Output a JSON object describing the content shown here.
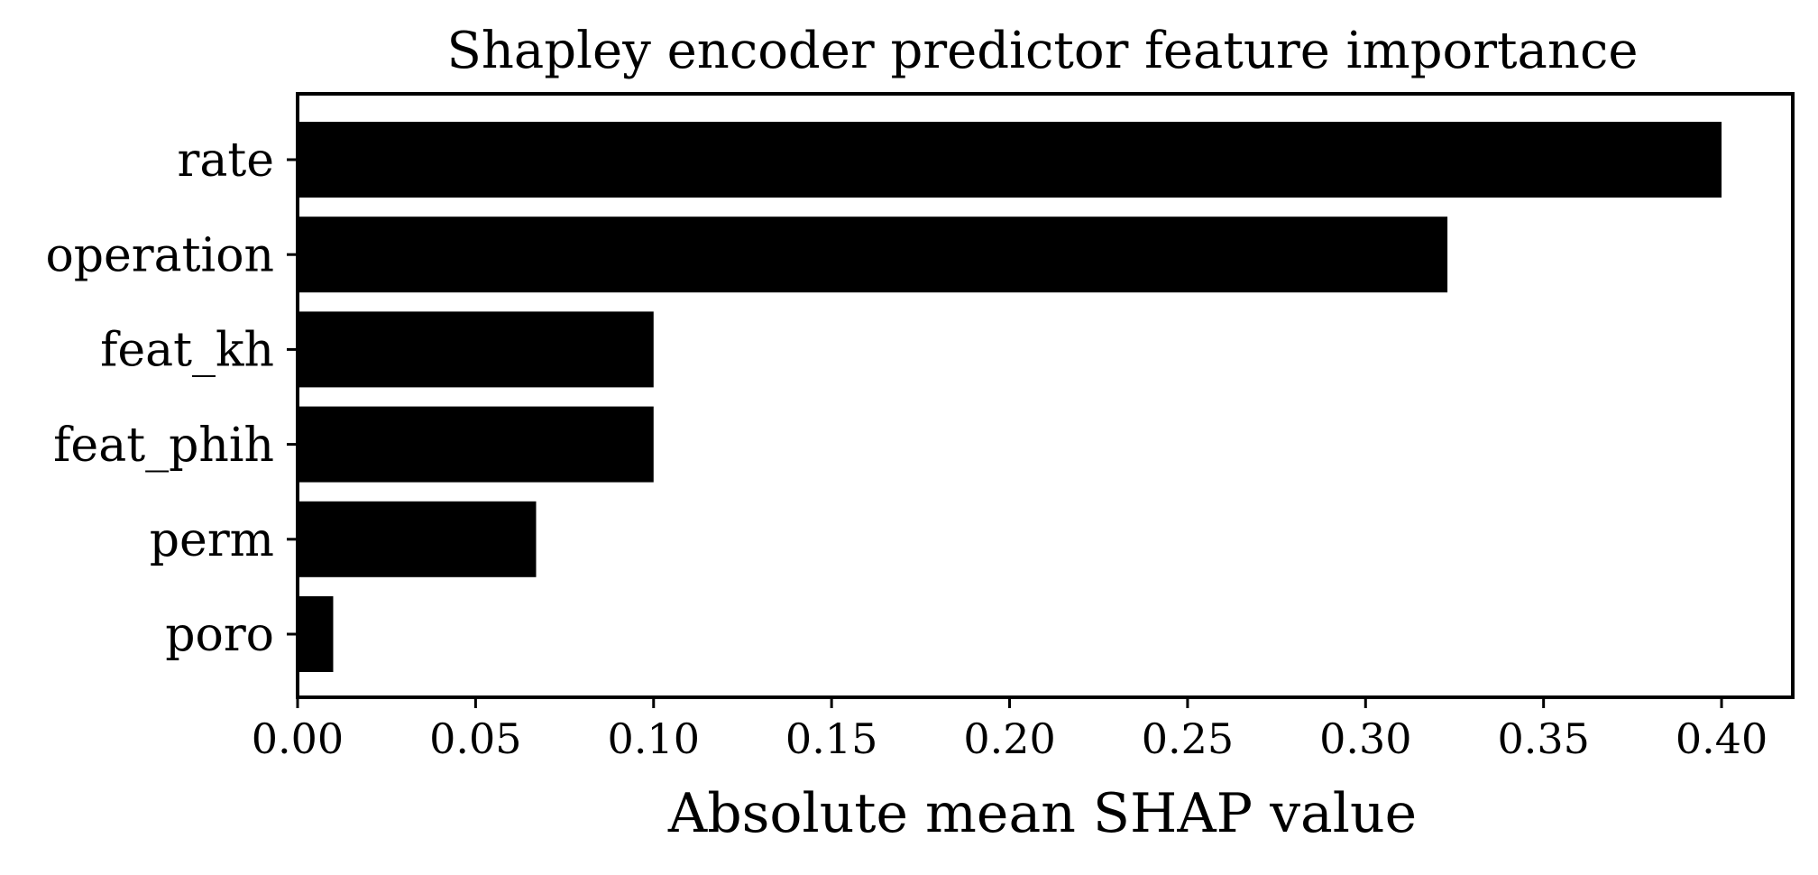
{
  "chart_data": {
    "type": "bar",
    "orientation": "horizontal",
    "title": "Shapley encoder predictor feature importance",
    "xlabel": "Absolute mean SHAP value",
    "ylabel": "",
    "categories": [
      "rate",
      "operation",
      "feat_kh",
      "feat_phih",
      "perm",
      "poro"
    ],
    "values": [
      0.4,
      0.323,
      0.1,
      0.1,
      0.067,
      0.01
    ],
    "xlim": [
      0,
      0.42
    ],
    "xticks": [
      0.0,
      0.05,
      0.1,
      0.15,
      0.2,
      0.25,
      0.3,
      0.35,
      0.4
    ],
    "xtick_labels": [
      "0.00",
      "0.05",
      "0.10",
      "0.15",
      "0.20",
      "0.25",
      "0.30",
      "0.35",
      "0.40"
    ],
    "grid": false,
    "legend": "none",
    "colors": {
      "bar": "#000000",
      "axes": "#000000",
      "background": "#ffffff"
    }
  }
}
